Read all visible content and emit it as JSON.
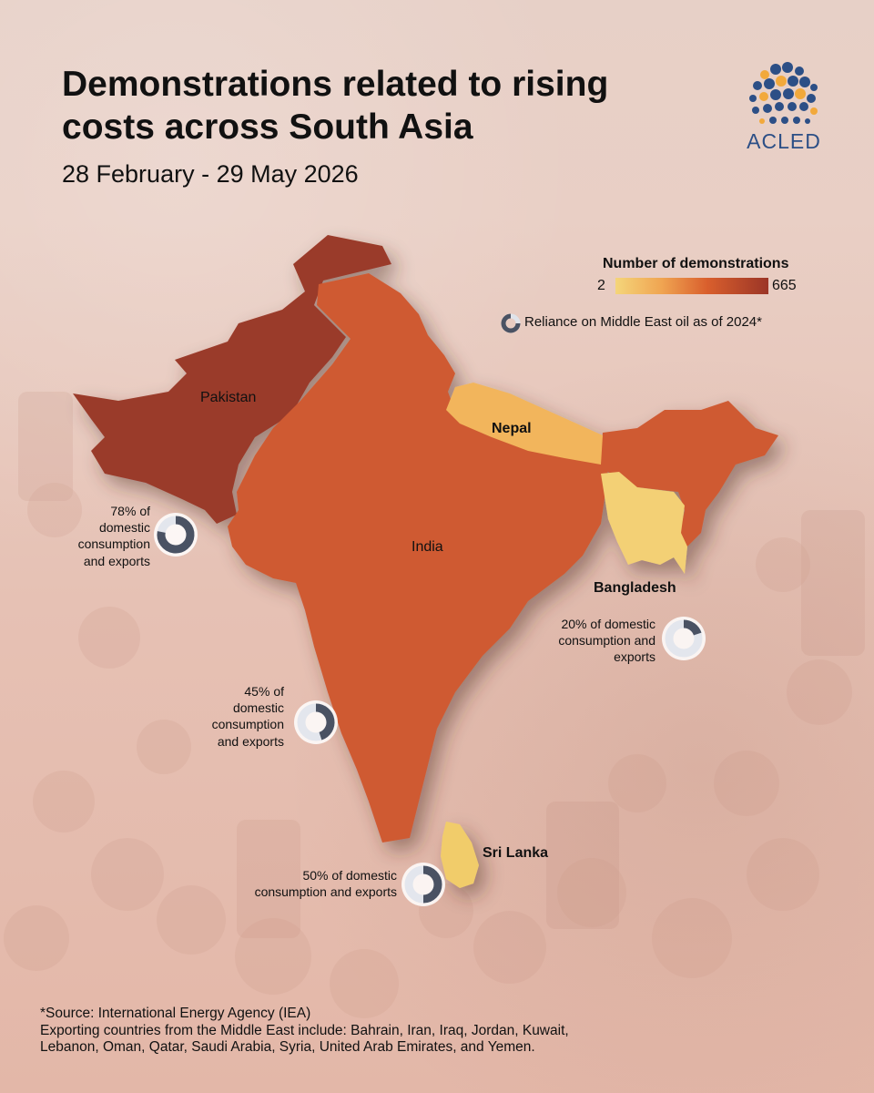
{
  "title": "Demonstrations related to rising costs across South Asia",
  "subtitle": "28 February - 29 May 2026",
  "logo": {
    "text": "ACLED",
    "icon": "globe-dots-icon"
  },
  "legend": {
    "title": "Number of demonstrations",
    "min": "2",
    "max": "665",
    "colors": [
      "#f4d57a",
      "#f0a552",
      "#d95f2d",
      "#9b3527"
    ],
    "reliance_label": "Reliance on Middle East oil as of 2024*"
  },
  "countries": [
    {
      "name": "Pakistan",
      "color": "#9a3b2b"
    },
    {
      "name": "India",
      "color": "#cf5a30"
    },
    {
      "name": "Nepal",
      "color": "#f2b55c"
    },
    {
      "name": "Bangladesh",
      "color": "#f3d074"
    },
    {
      "name": "Sri Lanka",
      "color": "#f1cc6a"
    }
  ],
  "callouts": [
    {
      "country": "Pakistan",
      "pct": "78%",
      "text_a": "of",
      "text_b": "domestic",
      "text_c": "consumption",
      "text_d": "and exports",
      "value": 0.78
    },
    {
      "country": "India",
      "pct": "45%",
      "text_a": "of",
      "text_b": "domestic",
      "text_c": "consumption",
      "text_d": "and exports",
      "value": 0.45
    },
    {
      "country": "Bangladesh",
      "pct": "20%",
      "text_a": "of domestic",
      "text_b": "consumption and",
      "text_c": "exports",
      "value": 0.2
    },
    {
      "country": "Sri Lanka",
      "pct": "50%",
      "text_a": "of domestic",
      "text_b": "consumption and exports",
      "value": 0.5
    }
  ],
  "source": {
    "line1": "*Source: International Energy Agency (IEA)",
    "line2": "Exporting countries from the Middle East include: Bahrain, Iran, Iraq, Jordan, Kuwait,",
    "line3": "Lebanon, Oman, Qatar, Saudi Arabia, Syria, United Arab Emirates, and Yemen."
  }
}
